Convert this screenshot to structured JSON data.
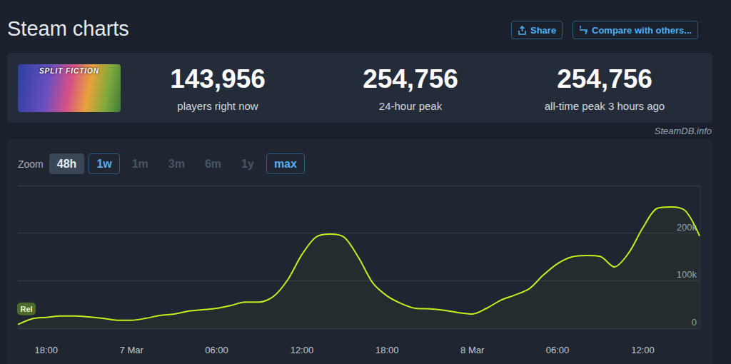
{
  "header": {
    "title": "Steam charts",
    "buttons": [
      "Share",
      "Compare with others..."
    ]
  },
  "game": {
    "image_text": "SPLIT FICTION"
  },
  "stats": [
    {
      "value": "143,956",
      "label": "players right now"
    },
    {
      "value": "254,756",
      "label": "24-hour peak"
    },
    {
      "value": "254,756",
      "label": "all-time peak 3 hours ago"
    }
  ],
  "source": "SteamDB.info",
  "zoom": {
    "label": "Zoom",
    "options": [
      "48h",
      "1w",
      "1m",
      "3m",
      "6m",
      "1y",
      "max"
    ],
    "selected": "48h",
    "highlighted": [
      "1w",
      "max"
    ]
  },
  "chart_data": {
    "type": "line",
    "categories": [
      null,
      null,
      "18:00",
      null,
      null,
      null,
      null,
      null,
      "7 Mar",
      null,
      null,
      null,
      null,
      null,
      "06:00",
      null,
      null,
      null,
      null,
      null,
      "12:00",
      null,
      null,
      null,
      null,
      null,
      "18:00",
      null,
      null,
      null,
      null,
      null,
      "8 Mar",
      null,
      null,
      null,
      null,
      null,
      "06:00",
      null,
      null,
      null,
      null,
      null,
      "12:00",
      null,
      null,
      null,
      null
    ],
    "values": [
      8000,
      20000,
      23000,
      26000,
      26000,
      24000,
      21000,
      17000,
      17000,
      21000,
      27000,
      30000,
      36000,
      39000,
      42000,
      48000,
      55000,
      55000,
      67000,
      102000,
      155000,
      192000,
      198000,
      191000,
      148000,
      95000,
      68000,
      52000,
      42000,
      41000,
      38000,
      33000,
      30000,
      42000,
      59000,
      70000,
      83000,
      112000,
      136000,
      150000,
      153000,
      151000,
      129000,
      158000,
      211000,
      252000,
      255000,
      247000,
      194000
    ],
    "color": "#c2f01e",
    "ylim": [
      0,
      300000
    ],
    "yticks": [
      0,
      {
        "value": 100000,
        "label": "100k"
      },
      {
        "value": 200000,
        "label": "200k"
      }
    ],
    "grid": true,
    "annotations": [
      {
        "text": "Rel"
      }
    ]
  }
}
